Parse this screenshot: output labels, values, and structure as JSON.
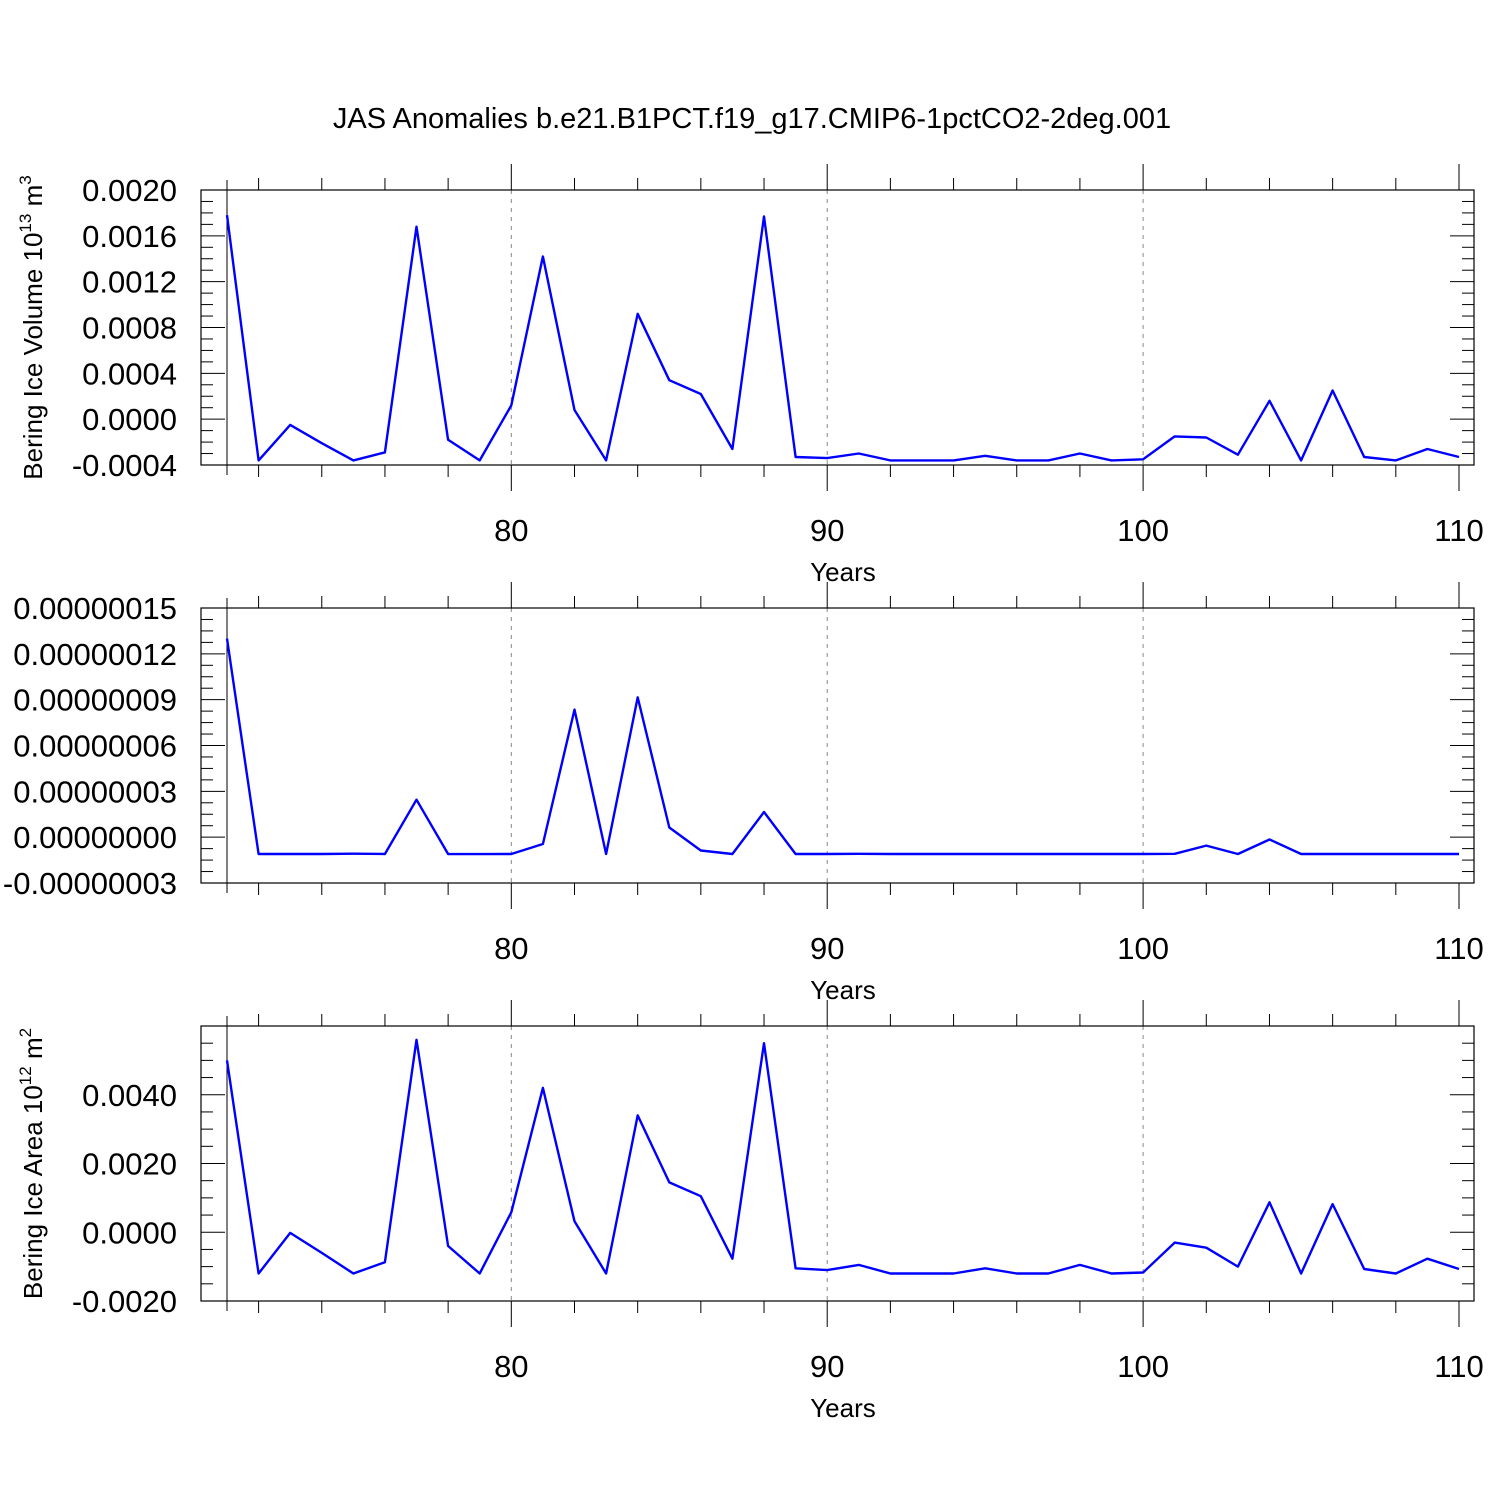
{
  "title": "JAS Anomalies b.e21.B1PCT.f19_g17.CMIP6-1pctCO2-2deg.001",
  "colors": {
    "line": "#0000ff",
    "grid": "#888888"
  },
  "chart_data": [
    {
      "type": "line",
      "title": "",
      "xlabel": "Years",
      "ylabel": "Bering Ice Volume 10",
      "ylabel_sup": "13",
      "ylabel_unit": " m",
      "ylabel_unit_sup": "3",
      "xlim": [
        71,
        110
      ],
      "ylim": [
        -0.0004,
        0.002
      ],
      "xticks": [
        80,
        90,
        100,
        110
      ],
      "xtick_labels": [
        "80",
        "90",
        "100",
        "110"
      ],
      "yticks": [
        -0.0004,
        0.0,
        0.0004,
        0.0008,
        0.0012,
        0.0016,
        0.002
      ],
      "ytick_labels": [
        "-0.0004",
        "0.0000",
        "0.0004",
        "0.0008",
        "0.0012",
        "0.0016",
        "0.0020"
      ],
      "grid": "vertical dashed at major x ticks",
      "x": [
        71,
        72,
        73,
        74,
        75,
        76,
        77,
        78,
        79,
        80,
        81,
        82,
        83,
        84,
        85,
        86,
        87,
        88,
        89,
        90,
        91,
        92,
        93,
        94,
        95,
        96,
        97,
        98,
        99,
        100,
        101,
        102,
        103,
        104,
        105,
        106,
        107,
        108,
        109,
        110
      ],
      "series": [
        {
          "values": [
            0.00178,
            -0.00036,
            -5e-05,
            -0.00021,
            -0.00036,
            -0.00029,
            0.00168,
            -0.00018,
            -0.00036,
            0.00012,
            0.00142,
            8e-05,
            -0.00036,
            0.00092,
            0.00034,
            0.00022,
            -0.00026,
            0.00177,
            -0.00033,
            -0.00034,
            -0.0003,
            -0.00036,
            -0.00036,
            -0.00036,
            -0.00032,
            -0.00036,
            -0.00036,
            -0.0003,
            -0.00036,
            -0.00035,
            -0.00015,
            -0.00016,
            -0.00031,
            0.00016,
            -0.00036,
            0.00025,
            -0.00033,
            -0.00036,
            -0.00026,
            -0.00033
          ]
        }
      ]
    },
    {
      "type": "line",
      "title": "",
      "xlabel": "Years",
      "ylabel": "",
      "xlim": [
        71,
        110
      ],
      "ylim": [
        -3e-08,
        1.5e-07
      ],
      "xticks": [
        80,
        90,
        100,
        110
      ],
      "xtick_labels": [
        "80",
        "90",
        "100",
        "110"
      ],
      "yticks": [
        -3e-08,
        0.0,
        3e-08,
        6e-08,
        9e-08,
        1.2e-07,
        1.5e-07
      ],
      "ytick_labels": [
        "-0.00000003",
        "0.00000000",
        "0.00000003",
        "0.00000006",
        "0.00000009",
        "0.00000012",
        "0.00000015"
      ],
      "grid": "vertical dashed at major x ticks",
      "x": [
        71,
        72,
        73,
        74,
        75,
        76,
        77,
        78,
        79,
        80,
        81,
        82,
        83,
        84,
        85,
        86,
        87,
        88,
        89,
        90,
        91,
        92,
        93,
        94,
        95,
        96,
        97,
        98,
        99,
        100,
        101,
        102,
        103,
        104,
        105,
        106,
        107,
        108,
        109,
        110
      ],
      "series": [
        {
          "values": [
            1.3e-07,
            -1.1e-08,
            -1.1e-08,
            -1.1e-08,
            -1.08e-08,
            -1.1e-08,
            2.45e-08,
            -1.1e-08,
            -1.11e-08,
            -1.1e-08,
            -4.5e-09,
            8.35e-08,
            -1.1e-08,
            9.15e-08,
            6.3e-09,
            -8.7e-09,
            -1.1e-08,
            1.65e-08,
            -1.1e-08,
            -1.1e-08,
            -1.09e-08,
            -1.1e-08,
            -1.1e-08,
            -1.1e-08,
            -1.1e-08,
            -1.1e-08,
            -1.1e-08,
            -1.1e-08,
            -1.1e-08,
            -1.1e-08,
            -1.09e-08,
            -5.5e-09,
            -1.1e-08,
            -1.5e-09,
            -1.1e-08,
            -1.1e-08,
            -1.1e-08,
            -1.1e-08,
            -1.1e-08,
            -1.1e-08
          ]
        }
      ]
    },
    {
      "type": "line",
      "title": "",
      "xlabel": "Years",
      "ylabel": "Bering Ice Area 10",
      "ylabel_sup": "12",
      "ylabel_unit": " m",
      "ylabel_unit_sup": "2",
      "xlim": [
        71,
        110
      ],
      "ylim": [
        -0.002,
        0.006
      ],
      "xticks": [
        80,
        90,
        100,
        110
      ],
      "xtick_labels": [
        "80",
        "90",
        "100",
        "110"
      ],
      "yticks": [
        -0.002,
        0.0,
        0.002,
        0.004
      ],
      "ytick_labels": [
        "-0.0020",
        "0.0000",
        "0.0020",
        "0.0040"
      ],
      "grid": "vertical dashed at major x ticks",
      "x": [
        71,
        72,
        73,
        74,
        75,
        76,
        77,
        78,
        79,
        80,
        81,
        82,
        83,
        84,
        85,
        86,
        87,
        88,
        89,
        90,
        91,
        92,
        93,
        94,
        95,
        96,
        97,
        98,
        99,
        100,
        101,
        102,
        103,
        104,
        105,
        106,
        107,
        108,
        109,
        110
      ],
      "series": [
        {
          "values": [
            0.005,
            -0.0012,
            -2e-05,
            -0.0006,
            -0.0012,
            -0.00087,
            0.0056,
            -0.0004,
            -0.0012,
            0.00058,
            0.0042,
            0.00032,
            -0.0012,
            0.0034,
            0.00145,
            0.00105,
            -0.00077,
            0.0055,
            -0.00105,
            -0.0011,
            -0.00095,
            -0.0012,
            -0.0012,
            -0.0012,
            -0.00105,
            -0.0012,
            -0.0012,
            -0.00095,
            -0.0012,
            -0.00117,
            -0.0003,
            -0.00045,
            -0.001,
            0.00087,
            -0.0012,
            0.00082,
            -0.00107,
            -0.0012,
            -0.00077,
            -0.00107
          ]
        }
      ]
    }
  ]
}
